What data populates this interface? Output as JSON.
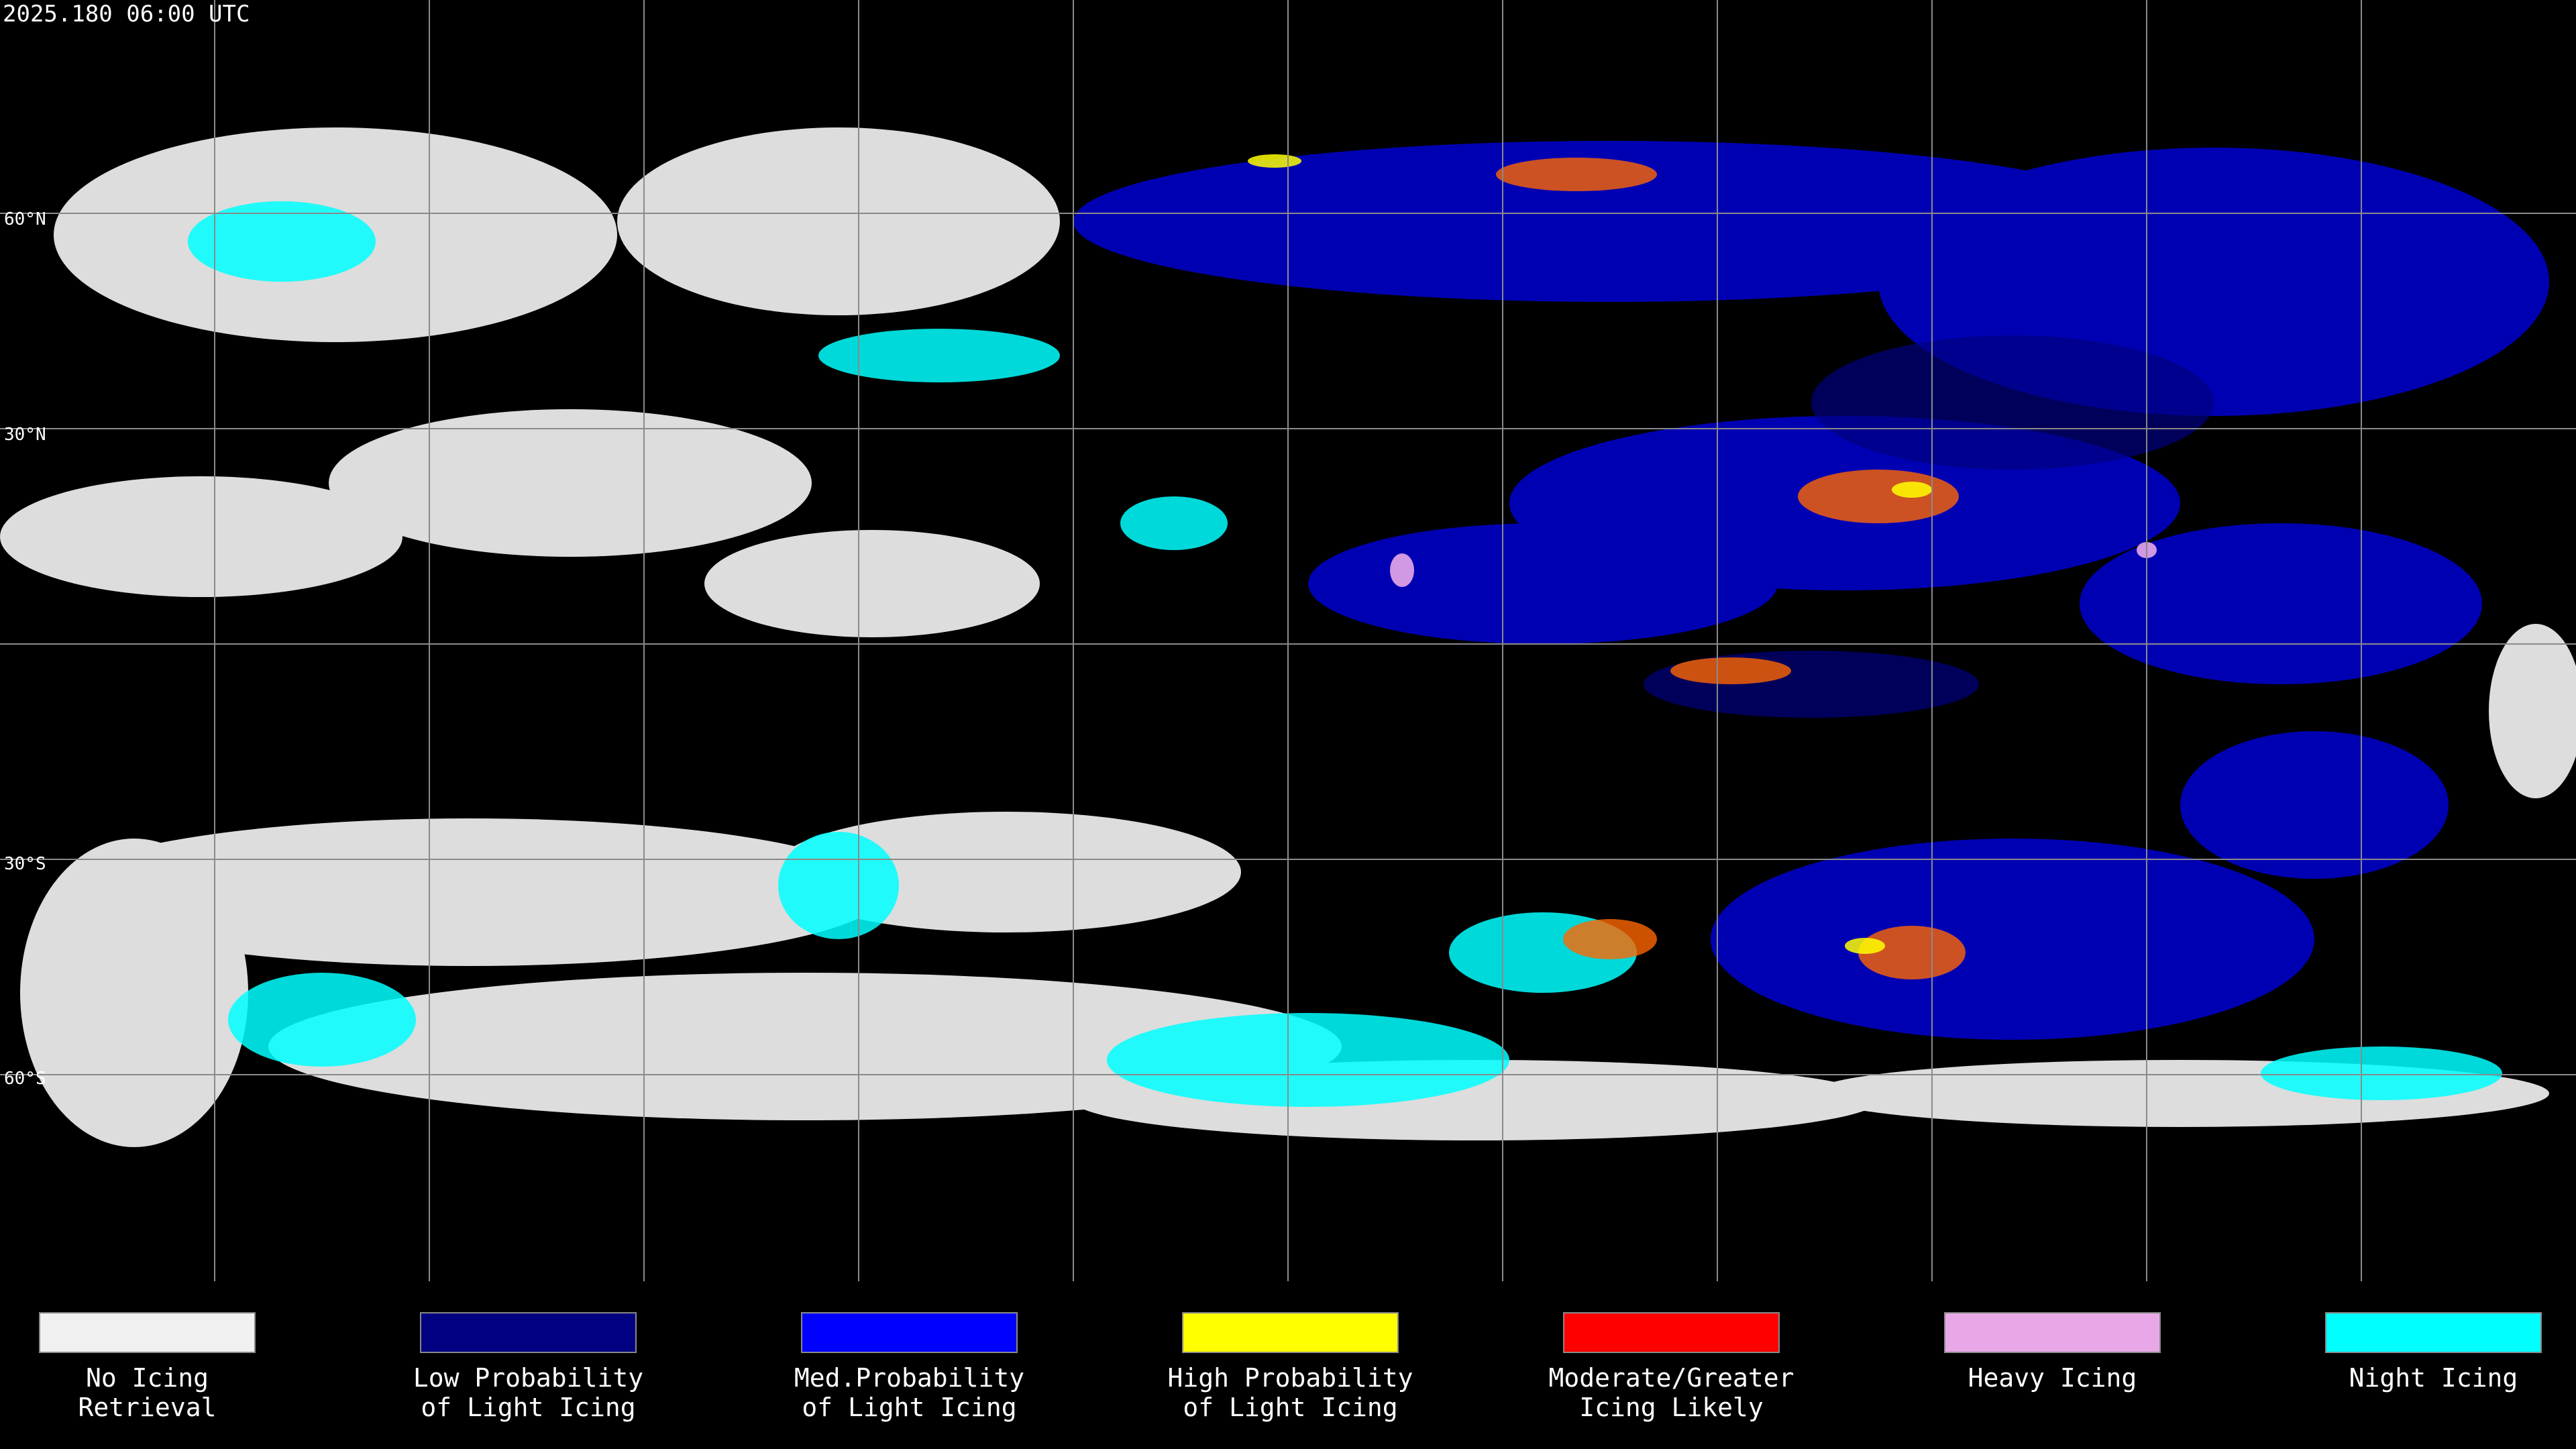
{
  "header": {
    "timestamp": "2025.180 06:00 UTC"
  },
  "map": {
    "latitude_labels": [
      "60°N",
      "30°N",
      "30°S",
      "60°S"
    ]
  },
  "legend": [
    {
      "color": "#f0f0f0",
      "label_lines": [
        "No Icing",
        "Retrieval"
      ]
    },
    {
      "color": "#000080",
      "label_lines": [
        "Low Probability",
        "of Light Icing"
      ]
    },
    {
      "color": "#0000ff",
      "label_lines": [
        "Med.Probability",
        "of Light Icing"
      ]
    },
    {
      "color": "#ffff00",
      "label_lines": [
        "High Probability",
        "of Light Icing"
      ]
    },
    {
      "color": "#ff0000",
      "label_lines": [
        "Moderate/Greater",
        "Icing Likely"
      ]
    },
    {
      "color": "#e8a8e8",
      "label_lines": [
        "Heavy Icing"
      ]
    },
    {
      "color": "#00ffff",
      "label_lines": [
        "Night Icing"
      ]
    }
  ]
}
